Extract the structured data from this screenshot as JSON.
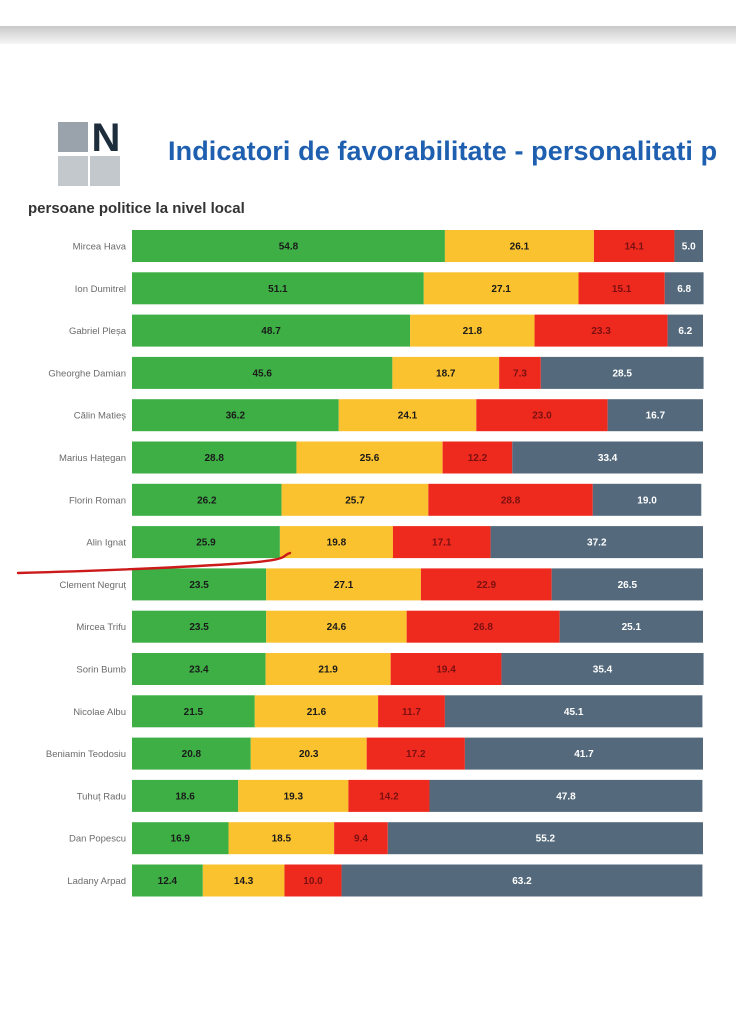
{
  "header": {
    "title": "Indicatori de favorabilitate - personalitati p",
    "subtitle": "persoane politice la nivel local",
    "logo_letter": "N"
  },
  "colors": {
    "favorable": "#3daf45",
    "somewhat": "#fbc22f",
    "unfavorable": "#ee2a1f",
    "unknown": "#546a7c",
    "title": "#1f5fb0",
    "annotation": "#cc1a1a"
  },
  "annotation": {
    "type": "hand-drawn red underline",
    "below_row": "Alin Ignat"
  },
  "chart_data": {
    "type": "bar",
    "orientation": "horizontal-stacked-100",
    "title": "Indicatori de favorabilitate - personalitati p",
    "subtitle": "persoane politice la nivel local",
    "categories": [
      "Mircea Hava",
      "Ion Dumitrel",
      "Gabriel Pleșa",
      "Gheorghe Damian",
      "Călin Matieș",
      "Marius Hațegan",
      "Florin Roman",
      "Alin Ignat",
      "Clement Negruț",
      "Mircea Trifu",
      "Sorin Bumb",
      "Nicolae Albu",
      "Beniamin Teodosiu",
      "Tuhuț Radu",
      "Dan Popescu",
      "Ladany Arpad"
    ],
    "series": [
      {
        "values": [
          54.8,
          51.1,
          48.7,
          45.6,
          36.2,
          28.8,
          26.2,
          25.9,
          23.5,
          23.5,
          23.4,
          21.5,
          20.8,
          18.6,
          16.9,
          12.4
        ]
      },
      {
        "values": [
          26.1,
          27.1,
          21.8,
          18.7,
          24.1,
          25.6,
          25.7,
          19.8,
          27.1,
          24.6,
          21.9,
          21.6,
          20.3,
          19.3,
          18.5,
          14.3
        ]
      },
      {
        "values": [
          14.1,
          15.1,
          23.3,
          7.3,
          23.0,
          12.2,
          28.8,
          17.1,
          22.9,
          26.8,
          19.4,
          11.7,
          17.2,
          14.2,
          9.4,
          10.0
        ]
      },
      {
        "values": [
          5.0,
          6.8,
          6.2,
          28.5,
          16.7,
          33.4,
          19.0,
          37.2,
          26.5,
          25.1,
          35.4,
          45.1,
          41.7,
          47.8,
          55.2,
          63.2
        ]
      }
    ],
    "value_labels": [
      [
        "54.8",
        "51.1",
        "48.7",
        "45.6",
        "36.2",
        "28.8",
        "26.2",
        "25.9",
        "23.5",
        "23.5",
        "23.4",
        "21.5",
        "20.8",
        "18.6",
        "16.9",
        "12.4"
      ],
      [
        "26.1",
        "27.1",
        "21.8",
        "18.7",
        "24.1",
        "25.6",
        "25.7",
        "19.8",
        "27.1",
        "24.6",
        "21.9",
        "21.6",
        "20.3",
        "19.3",
        "18.5",
        "14.3"
      ],
      [
        "14.1",
        "15.1",
        "23.3",
        "7.3",
        "23.0",
        "12.2",
        "28.8",
        "17.1",
        "22.9",
        "26.8",
        "19.4",
        "11.7",
        "17.2",
        "14.2",
        "9.4",
        "10.0"
      ],
      [
        "5.0",
        "6.8",
        "6.2",
        "28.5",
        "16.7",
        "33.4",
        "19.0",
        "37.2",
        "26.5",
        "25.1",
        "35.4",
        "45.1",
        "41.7",
        "47.8",
        "55.2",
        "63.2"
      ]
    ],
    "series_colors": [
      "#3daf45",
      "#fbc22f",
      "#ee2a1f",
      "#546a7c"
    ],
    "label_colors": [
      "#1a1a1a",
      "#1a1a1a",
      "#7a1010",
      "#ffffff"
    ],
    "xlim": [
      0,
      100
    ],
    "grid": false,
    "legend": "none"
  }
}
